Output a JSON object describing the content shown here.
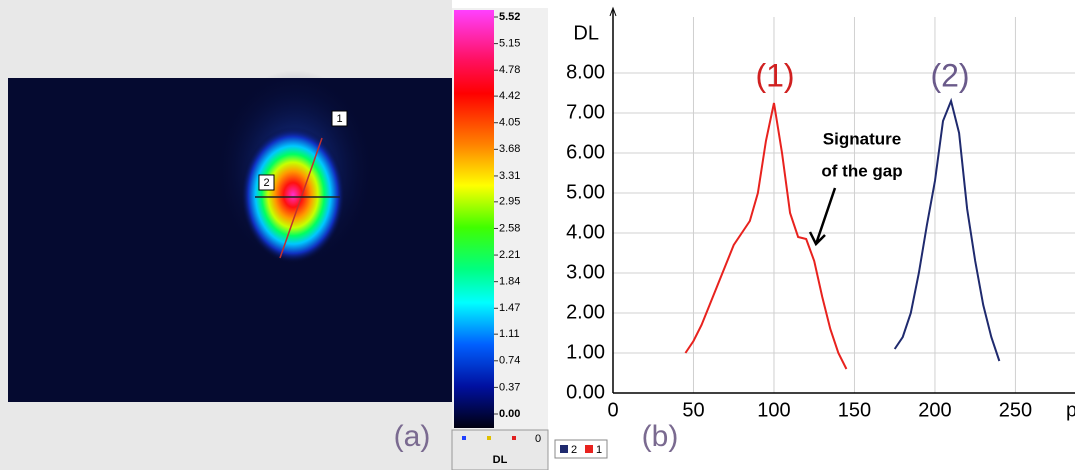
{
  "image": {
    "markers": [
      "1",
      "2"
    ],
    "caption": "(a)"
  },
  "colorbar": {
    "lim": [
      0,
      5.52
    ],
    "ticks": [
      5.52,
      5.15,
      4.78,
      4.42,
      4.05,
      3.68,
      3.31,
      2.95,
      2.58,
      2.21,
      1.84,
      1.47,
      1.11,
      0.74,
      0.37,
      {
        "value": 0,
        "label": "0.00"
      }
    ],
    "footer": "0",
    "label": "DL"
  },
  "chart_data": {
    "type": "line",
    "caption": "(b)",
    "ylabel": "DL",
    "xlabel": "px",
    "xlim": [
      0,
      287
    ],
    "ylim": [
      0,
      9.4
    ],
    "xticks": [
      0,
      50,
      100,
      150,
      200,
      250
    ],
    "yticks": [
      {
        "value": 0,
        "label": "0.00"
      },
      {
        "value": 1,
        "label": "1.00"
      },
      {
        "value": 2,
        "label": "2.00"
      },
      {
        "value": 3,
        "label": "3.00"
      },
      {
        "value": 4,
        "label": "4.00"
      },
      {
        "value": 5,
        "label": "5.00"
      },
      {
        "value": 6,
        "label": "6.00"
      },
      {
        "value": 7,
        "label": "7.00"
      },
      {
        "value": 8,
        "label": "8.00"
      }
    ],
    "grid": true,
    "annotations": [
      "(1)",
      "(2)",
      "Signature",
      "of the gap"
    ],
    "series": [
      {
        "name": "2",
        "color": "#1f2a6e",
        "x": [
          175,
          180,
          185,
          190,
          195,
          200,
          205,
          210,
          215,
          220,
          225,
          230,
          235,
          240
        ],
        "values": [
          1.1,
          1.4,
          2.0,
          3.0,
          4.2,
          5.3,
          6.8,
          7.3,
          6.5,
          4.6,
          3.3,
          2.2,
          1.4,
          0.8
        ]
      },
      {
        "name": "1",
        "color": "#e8221e",
        "x": [
          45,
          50,
          55,
          60,
          65,
          70,
          75,
          80,
          85,
          90,
          95,
          100,
          105,
          110,
          115,
          120,
          125,
          130,
          135,
          140,
          145
        ],
        "values": [
          1.0,
          1.3,
          1.7,
          2.2,
          2.7,
          3.2,
          3.7,
          4.0,
          4.3,
          5.0,
          6.3,
          7.25,
          6.0,
          4.5,
          3.9,
          3.85,
          3.3,
          2.4,
          1.6,
          1.0,
          0.6
        ]
      }
    ]
  }
}
